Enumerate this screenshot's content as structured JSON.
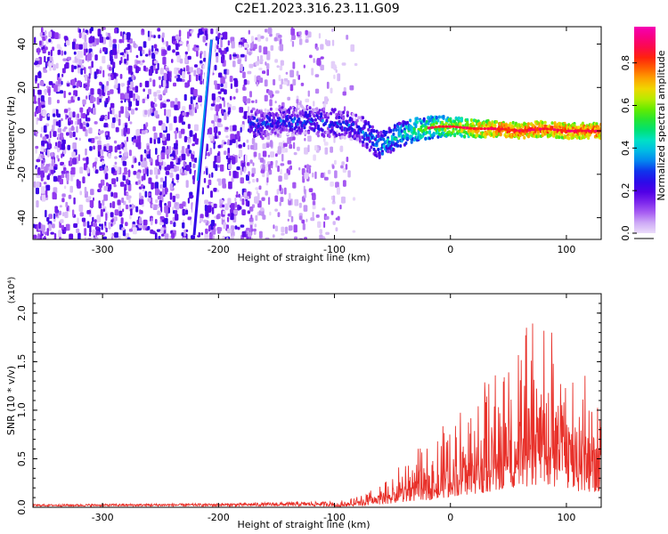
{
  "title": "C2E1.2023.316.23.11.G09",
  "chart_data": [
    {
      "type": "heatmap",
      "xlabel": "Height of straight line (km)",
      "ylabel": "Frequency (Hz)",
      "xlim": [
        -360,
        130
      ],
      "ylim": [
        -50,
        48
      ],
      "xticks": [
        -300,
        -200,
        -100,
        0,
        100
      ],
      "yticks": [
        -40,
        -20,
        0,
        20,
        40
      ],
      "colorbar": {
        "label": "Normalized spectral amplitude",
        "range": [
          0,
          0.97
        ],
        "ticks": [
          "0.0",
          "0.2",
          "0.4",
          "0.6",
          "0.8"
        ]
      },
      "features": {
        "noise_extent_km": [
          -360,
          -80
        ],
        "dense_noise_extent_km": [
          -360,
          -175
        ],
        "direct_signal_line": {
          "x": [
            -221,
            -206
          ],
          "y": [
            -48,
            42
          ]
        },
        "doppler_trace": {
          "x": [
            -170,
            -150,
            -130,
            -110,
            -95,
            -80,
            -70,
            -62,
            -55,
            -45,
            -35,
            -25,
            -10,
            0,
            20,
            40,
            60,
            80,
            100,
            120,
            130
          ],
          "y": [
            3,
            4,
            5,
            4,
            3,
            1,
            -3,
            -7,
            -5,
            -2,
            0,
            1,
            2,
            2,
            1,
            1,
            0,
            1,
            0,
            0,
            0
          ]
        }
      }
    },
    {
      "type": "line",
      "xlabel": "Height of straight line (km)",
      "ylabel": "SNR (10 * v/v)",
      "y_multiplier": "(x10⁴)",
      "xlim": [
        -360,
        130
      ],
      "ylim": [
        0,
        2.2
      ],
      "xticks": [
        -300,
        -200,
        -100,
        0,
        100
      ],
      "yticks": [
        "0.0",
        "0.5",
        "1.0",
        "1.5",
        "2.0"
      ],
      "color": "#e8312a",
      "envelope": {
        "x": [
          -360,
          -200,
          -100,
          -80,
          -60,
          -45,
          -30,
          -20,
          -10,
          0,
          10,
          20,
          30,
          40,
          50,
          60,
          70,
          80,
          90,
          100,
          110,
          120,
          130
        ],
        "y": [
          0.02,
          0.03,
          0.05,
          0.1,
          0.2,
          0.35,
          0.5,
          0.55,
          0.65,
          0.8,
          0.9,
          1.0,
          1.1,
          1.25,
          1.4,
          1.5,
          1.6,
          1.8,
          1.55,
          1.4,
          1.2,
          1.15,
          1.1
        ]
      }
    }
  ]
}
